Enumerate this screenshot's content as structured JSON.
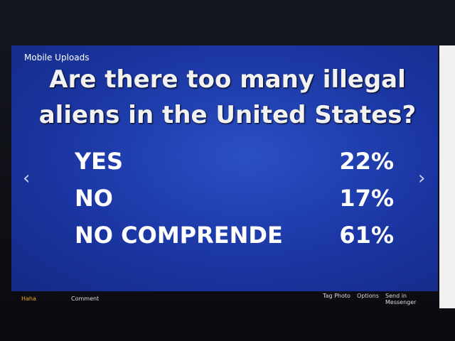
{
  "header": {
    "album": "Mobile Uploads",
    "title_lines": [
      "Are there too many illegal",
      "aliens in the United States?"
    ]
  },
  "poll": {
    "options": [
      {
        "label": "YES",
        "percent": "22%"
      },
      {
        "label": "NO",
        "percent": "17%"
      },
      {
        "label": "NO COMPRENDE",
        "percent": "61%"
      }
    ]
  },
  "footer": {
    "actions": [
      "Haha",
      "Comment"
    ],
    "links": [
      "Tag Photo",
      "Options",
      "Send in Messenger"
    ]
  }
}
